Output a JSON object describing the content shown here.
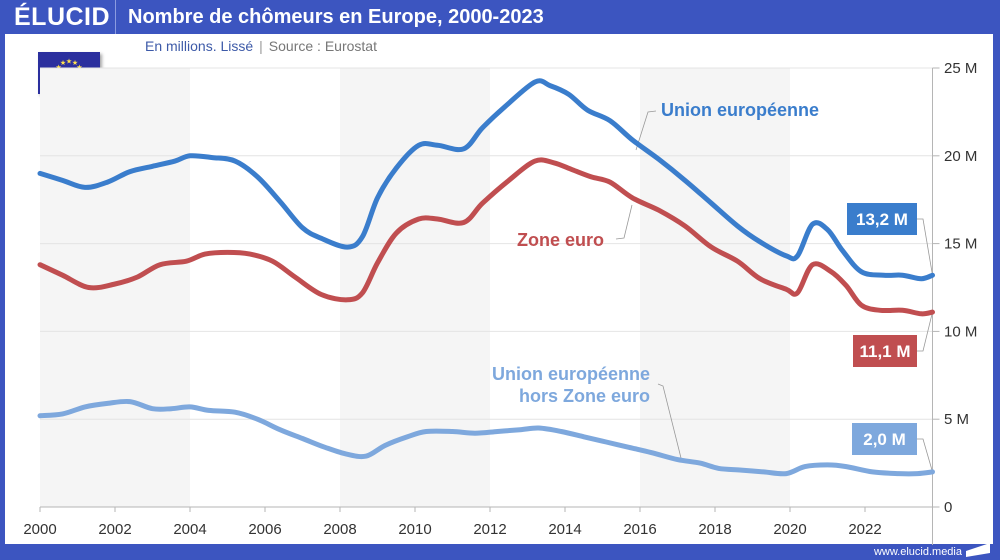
{
  "header": {
    "logo": "ÉLUCID",
    "title": "Nombre de chômeurs en Europe, 2000-2023"
  },
  "subtitle": {
    "text": "En millions. Lissé",
    "separator": "|",
    "source": "Source : Eurostat"
  },
  "footer": {
    "url": "www.elucid.media"
  },
  "icons": {
    "flag": "eu-flag-icon",
    "logo_mark": "elucid-mark-icon"
  },
  "colors": {
    "header_bg": "#3c55c0",
    "eu": "#3a7dcc",
    "ez": "#c04e50",
    "non_ez": "#7ea8dd",
    "band": "#f5f5f5",
    "grid": "#e4e4e4",
    "axis": "#b5b5b5",
    "text": "#333333"
  },
  "chart_data": {
    "type": "line",
    "title": "Nombre de chômeurs en Europe, 2000-2023",
    "subtitle": "En millions. Lissé",
    "xlabel": "",
    "ylabel": "",
    "xlim": [
      2000,
      2023.8
    ],
    "ylim": [
      0,
      25
    ],
    "grid": true,
    "x_ticks": [
      "2000",
      "2002",
      "2004",
      "2006",
      "2008",
      "2010",
      "2012",
      "2014",
      "2016",
      "2018",
      "2020",
      "2022"
    ],
    "y_ticks": [
      "0",
      "5 M",
      "10 M",
      "15 M",
      "20 M",
      "25 M"
    ],
    "y_tick_values": [
      0,
      5,
      10,
      15,
      20,
      25
    ],
    "shaded_bands": [
      [
        2000,
        2004
      ],
      [
        2008,
        2012
      ],
      [
        2016,
        2020
      ]
    ],
    "series": [
      {
        "name": "Union européenne",
        "key": "eu",
        "label": "Union européenne",
        "end_label": "13,2 M",
        "x": [
          2000,
          2000.6,
          2001.2,
          2001.8,
          2002.4,
          2003,
          2003.6,
          2004,
          2004.6,
          2005.2,
          2005.8,
          2006.4,
          2007,
          2007.5,
          2008.2,
          2008.6,
          2009,
          2009.5,
          2010.1,
          2010.6,
          2011.3,
          2011.8,
          2012.4,
          2013.2,
          2013.6,
          2014.1,
          2014.6,
          2015.2,
          2015.8,
          2016.5,
          2017.2,
          2017.9,
          2018.6,
          2019.2,
          2019.9,
          2020.2,
          2020.6,
          2021,
          2021.4,
          2021.9,
          2022.5,
          2023,
          2023.5,
          2023.8
        ],
        "values": [
          19.0,
          18.6,
          18.2,
          18.5,
          19.1,
          19.4,
          19.7,
          20.0,
          19.9,
          19.7,
          18.8,
          17.4,
          15.9,
          15.3,
          14.8,
          15.4,
          17.6,
          19.3,
          20.6,
          20.6,
          20.4,
          21.6,
          22.8,
          24.2,
          24.0,
          23.5,
          22.6,
          22.0,
          20.9,
          19.8,
          18.6,
          17.3,
          16.0,
          15.1,
          14.3,
          14.3,
          16.1,
          15.8,
          14.6,
          13.4,
          13.2,
          13.2,
          13.0,
          13.2
        ]
      },
      {
        "name": "Zone euro",
        "key": "ez",
        "label": "Zone euro",
        "end_label": "11,1 M",
        "x": [
          2000,
          2000.6,
          2001.3,
          2002,
          2002.6,
          2003.2,
          2003.9,
          2004.4,
          2005,
          2005.6,
          2006.2,
          2006.8,
          2007.5,
          2008.2,
          2008.6,
          2009,
          2009.5,
          2010.1,
          2010.6,
          2011.3,
          2011.8,
          2012.5,
          2013.2,
          2013.7,
          2014.2,
          2014.7,
          2015.2,
          2015.8,
          2016.5,
          2017.2,
          2017.9,
          2018.6,
          2019.2,
          2019.9,
          2020.2,
          2020.6,
          2021.1,
          2021.5,
          2021.9,
          2022.4,
          2023,
          2023.5,
          2023.8
        ],
        "values": [
          13.8,
          13.2,
          12.5,
          12.7,
          13.1,
          13.8,
          14.0,
          14.4,
          14.5,
          14.4,
          14.0,
          13.1,
          12.1,
          11.8,
          12.2,
          13.9,
          15.6,
          16.4,
          16.4,
          16.2,
          17.3,
          18.6,
          19.7,
          19.6,
          19.2,
          18.8,
          18.5,
          17.6,
          16.9,
          16.0,
          14.8,
          14.0,
          13.0,
          12.4,
          12.2,
          13.8,
          13.4,
          12.6,
          11.5,
          11.2,
          11.2,
          11.0,
          11.1
        ]
      },
      {
        "name": "Union européenne hors Zone euro",
        "key": "non_ez",
        "label": "Union européenne\nhors Zone euro",
        "end_label": "2,0 M",
        "x": [
          2000,
          2000.6,
          2001.2,
          2001.8,
          2002.4,
          2003,
          2003.5,
          2004,
          2004.5,
          2005.2,
          2005.8,
          2006.4,
          2007,
          2007.6,
          2008.2,
          2008.7,
          2009.2,
          2009.8,
          2010.3,
          2011,
          2011.6,
          2012.2,
          2012.8,
          2013.3,
          2013.9,
          2014.5,
          2015.1,
          2015.7,
          2016.3,
          2017,
          2017.6,
          2018.1,
          2018.7,
          2019.3,
          2019.9,
          2020.4,
          2021,
          2021.5,
          2022.2,
          2022.9,
          2023.4,
          2023.8
        ],
        "values": [
          5.2,
          5.3,
          5.7,
          5.9,
          6.0,
          5.6,
          5.6,
          5.7,
          5.5,
          5.4,
          5.0,
          4.4,
          3.9,
          3.4,
          3.0,
          2.9,
          3.5,
          4.0,
          4.3,
          4.3,
          4.2,
          4.3,
          4.4,
          4.5,
          4.3,
          4.0,
          3.7,
          3.4,
          3.1,
          2.7,
          2.5,
          2.2,
          2.1,
          2.0,
          1.9,
          2.3,
          2.4,
          2.3,
          2.0,
          1.9,
          1.9,
          2.0
        ]
      }
    ]
  }
}
